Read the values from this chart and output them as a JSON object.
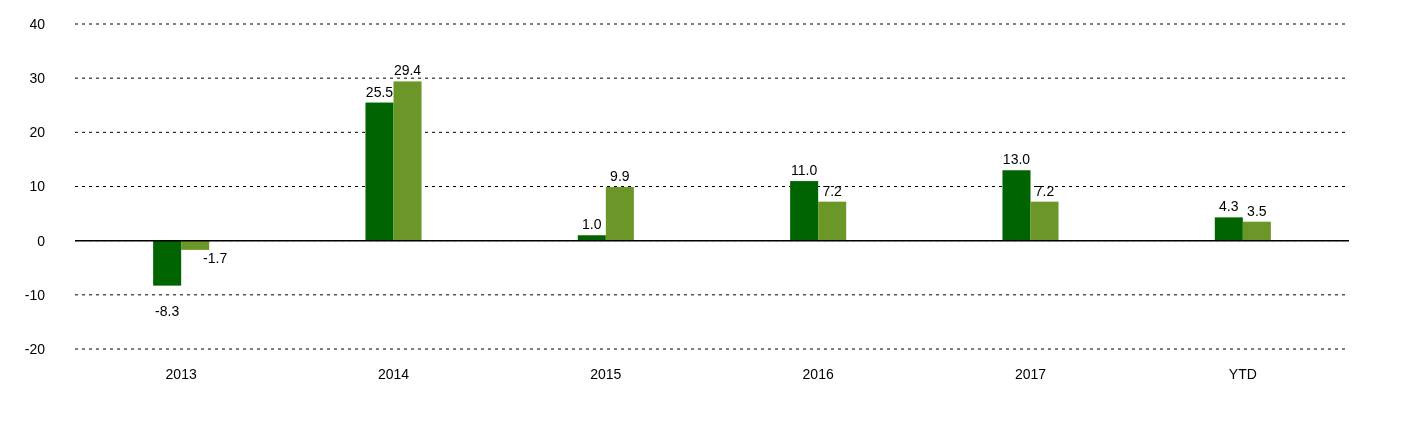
{
  "chart_data": {
    "type": "bar",
    "categories": [
      "2013",
      "2014",
      "2015",
      "2016",
      "2017",
      "YTD"
    ],
    "series": [
      {
        "color": "#006400",
        "values": [
          -8.3,
          25.5,
          1.0,
          11.0,
          13.0,
          4.3
        ],
        "value_labels": [
          "-8.3",
          "25.5",
          "1.0",
          "11.0",
          "13.0",
          "4.3"
        ]
      },
      {
        "color": "#6b9628",
        "values": [
          -1.7,
          29.4,
          9.9,
          7.2,
          7.2,
          3.5
        ],
        "value_labels": [
          "-1.7",
          "29.4",
          "9.9",
          "7.2",
          "7.2",
          "3.5"
        ]
      }
    ],
    "ylim": [
      -20,
      40
    ],
    "yticks": [
      -20,
      -10,
      0,
      10,
      20,
      30,
      40
    ],
    "grid": "y"
  }
}
